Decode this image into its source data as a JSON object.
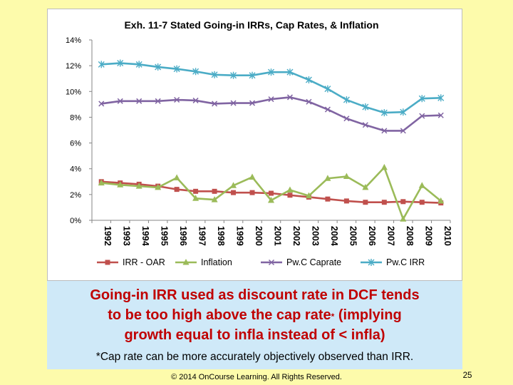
{
  "chart_data": {
    "type": "line",
    "title": "Exh. 11-7 Stated Going-in IRRs, Cap Rates, & Inflation",
    "xlabel": "",
    "ylabel": "",
    "ylim": [
      0,
      14
    ],
    "yticks": [
      "0%",
      "2%",
      "4%",
      "6%",
      "8%",
      "10%",
      "12%",
      "14%"
    ],
    "categories": [
      "1992",
      "1993",
      "1994",
      "1995",
      "1996",
      "1997",
      "1998",
      "1999",
      "2000",
      "2001",
      "2002",
      "2003",
      "2004",
      "2005",
      "2006",
      "2007",
      "2008",
      "2009",
      "2010"
    ],
    "legend_position": "bottom",
    "series": [
      {
        "name": "IRR - OAR",
        "color": "#c0504d",
        "marker": "square",
        "values": [
          3.0,
          2.9,
          2.8,
          2.65,
          2.4,
          2.25,
          2.25,
          2.15,
          2.15,
          2.1,
          1.95,
          1.8,
          1.65,
          1.5,
          1.4,
          1.4,
          1.45,
          1.4,
          1.35
        ]
      },
      {
        "name": "Inflation",
        "color": "#9bbb59",
        "marker": "triangle",
        "values": [
          2.9,
          2.75,
          2.65,
          2.55,
          3.3,
          1.7,
          1.6,
          2.7,
          3.35,
          1.55,
          2.35,
          1.9,
          3.25,
          3.4,
          2.55,
          4.1,
          0.1,
          2.7,
          1.5
        ]
      },
      {
        "name": "Pw.C Caprate",
        "color": "#8064a2",
        "marker": "x",
        "values": [
          9.05,
          9.25,
          9.25,
          9.25,
          9.35,
          9.3,
          9.05,
          9.1,
          9.1,
          9.4,
          9.55,
          9.2,
          8.6,
          7.9,
          7.4,
          6.95,
          6.95,
          8.1,
          8.15
        ]
      },
      {
        "name": "Pw.C IRR",
        "color": "#4bacc6",
        "marker": "star",
        "values": [
          12.1,
          12.2,
          12.1,
          11.9,
          11.75,
          11.55,
          11.3,
          11.25,
          11.25,
          11.5,
          11.5,
          10.9,
          10.2,
          9.35,
          8.8,
          8.35,
          8.4,
          9.45,
          9.5
        ]
      }
    ]
  },
  "caption": {
    "line1": "Going-in IRR used as discount rate in DCF tends",
    "line2_a": "to be too high above the cap rate",
    "line2_star": "*",
    "line2_b": " (implying",
    "line3": "growth equal to infla instead of < infla)",
    "footnote": "*Cap rate can be more accurately objectively observed than IRR."
  },
  "footer": {
    "copyright": "© 2014 OnCourse Learning. All Rights Reserved.",
    "page_number": "25"
  }
}
